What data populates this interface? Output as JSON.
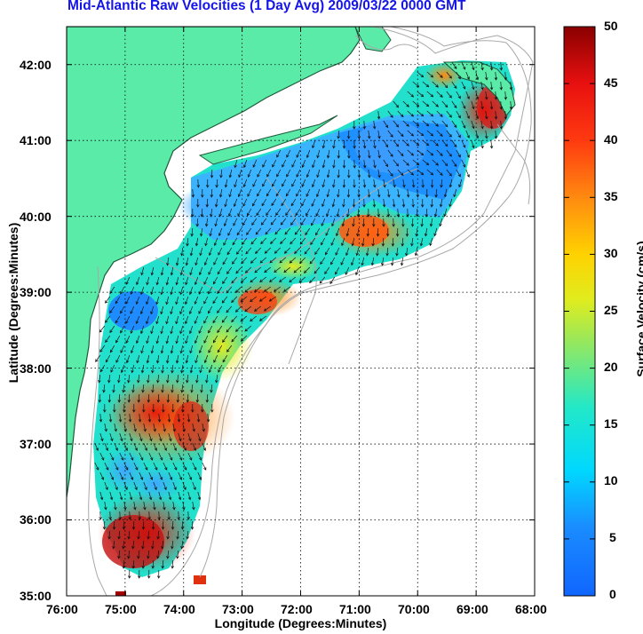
{
  "title": "Mid-Atlantic Raw Velocities (1 Day Avg) 2009/03/22 0000 GMT",
  "chart_data": {
    "type": "heatmap",
    "title": "Mid-Atlantic Raw Velocities (1 Day Avg) 2009/03/22 0000 GMT",
    "xlabel": "Longitude (Degrees:Minutes)",
    "ylabel": "Latitude (Degrees:Minutes)",
    "x_ticks": [
      "76:00",
      "75:00",
      "74:00",
      "73:00",
      "72:00",
      "71:00",
      "70:00",
      "69:00",
      "68:00"
    ],
    "y_ticks": [
      "35:00",
      "36:00",
      "37:00",
      "38:00",
      "39:00",
      "40:00",
      "41:00",
      "42:00"
    ],
    "xlim": [
      -76,
      -68
    ],
    "ylim": [
      35,
      42.5
    ],
    "grid": true,
    "colorbar": {
      "label": "Surface Velocity (cm/s)",
      "ticks": [
        "0",
        "5",
        "10",
        "15",
        "20",
        "25",
        "30",
        "35",
        "40",
        "45",
        "50"
      ],
      "range": [
        0,
        50
      ]
    }
  },
  "colors": {
    "land": "#5beba9",
    "coast": "#1d5a3a",
    "bathymetry": "#a8a8a8",
    "title": "#1515e8"
  }
}
